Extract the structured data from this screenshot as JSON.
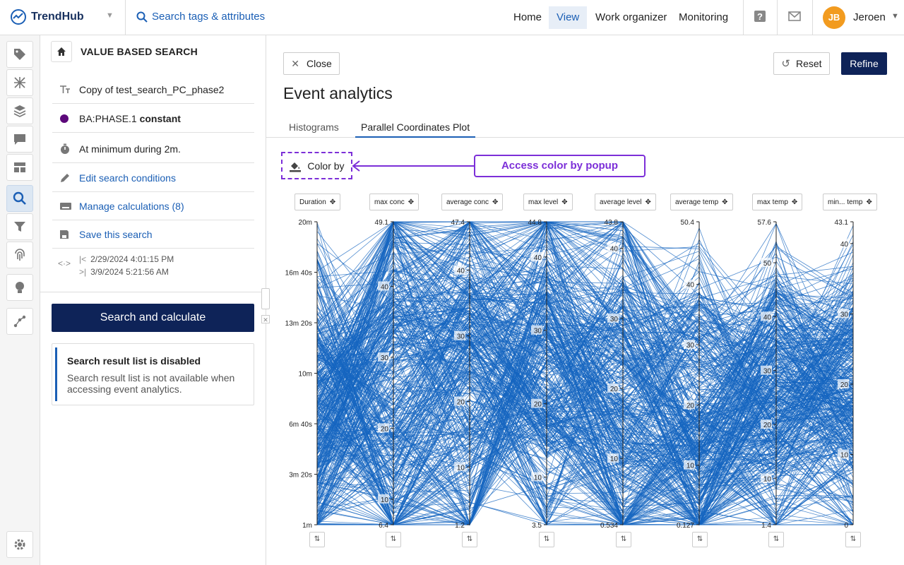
{
  "app": {
    "brand": "TrendHub"
  },
  "search": {
    "placeholder": "Search tags & attributes"
  },
  "nav": {
    "home": "Home",
    "view": "View",
    "work_organizer": "Work organizer",
    "monitoring": "Monitoring"
  },
  "user": {
    "initials": "JB",
    "name": "Jeroen"
  },
  "side": {
    "title": "VALUE BASED SEARCH",
    "search_name": "Copy of test_search_PC_phase2",
    "condition_tag": "BA:PHASE.1",
    "condition_op": "constant",
    "duration_text": "At minimum during 2m.",
    "edit_link": "Edit search conditions",
    "manage_link": "Manage calculations (8)",
    "save_link": "Save this search",
    "date_start": "2/29/2024 4:01:15 PM",
    "date_end": "3/9/2024 5:21:56 AM",
    "search_button": "Search and calculate",
    "notice_title": "Search result list is disabled",
    "notice_text": "Search result list is not available when accessing event analytics."
  },
  "main": {
    "close_label": "Close",
    "reset_label": "Reset",
    "refine_label": "Refine",
    "title": "Event analytics",
    "tabs": [
      "Histograms",
      "Parallel Coordinates Plot"
    ],
    "active_tab": 1,
    "color_by_label": "Color by",
    "annotation": "Access color by popup"
  },
  "colors": {
    "accent": "#1b5fb5",
    "navy": "#0e2358",
    "line": "#1565c0",
    "annotation": "#7c2fd8"
  },
  "chart_data": {
    "type": "parallel-coordinates",
    "axes": [
      {
        "name": "Duration",
        "min": "1m",
        "max": "20m",
        "ticks": [
          "20m",
          "16m 40s",
          "13m 20s",
          "10m",
          "6m 40s",
          "3m 20s",
          "1m"
        ]
      },
      {
        "name": "max conc",
        "min": 6.4,
        "max": 49.1,
        "ticks": [
          49.1,
          40,
          30,
          20,
          10,
          6.4
        ]
      },
      {
        "name": "average conc",
        "min": 1.2,
        "max": 47.4,
        "ticks": [
          47.4,
          40,
          30,
          20,
          10,
          1.2
        ]
      },
      {
        "name": "max level",
        "min": 3.5,
        "max": 44.8,
        "ticks": [
          44.8,
          40,
          30,
          20,
          10,
          3.5
        ]
      },
      {
        "name": "average level",
        "min": 0.534,
        "max": 43.8,
        "ticks": [
          43.8,
          40,
          30,
          20,
          10,
          0.534
        ]
      },
      {
        "name": "average temp",
        "min": 0.127,
        "max": 50.4,
        "ticks": [
          50.4,
          40,
          30,
          20,
          10,
          0.127
        ]
      },
      {
        "name": "max temp",
        "min": 1.4,
        "max": 57.6,
        "ticks": [
          57.6,
          50,
          40,
          30,
          20,
          10,
          1.4
        ]
      },
      {
        "name": "min... temp",
        "min": 0,
        "max": 43.1,
        "ticks": [
          43.1,
          40,
          30,
          20,
          10,
          0
        ]
      }
    ],
    "line_color": "#1565c0"
  }
}
